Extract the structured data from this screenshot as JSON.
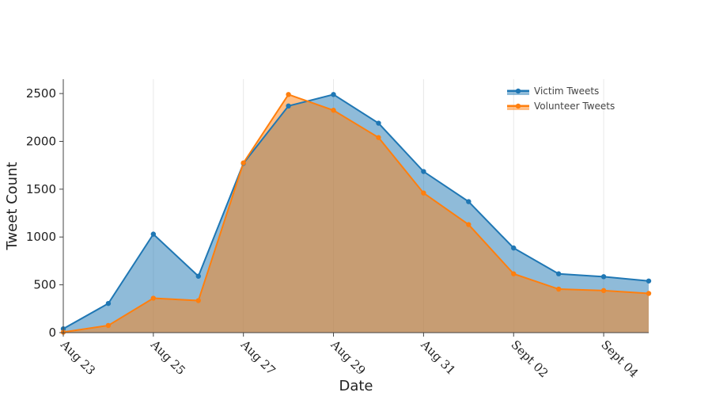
{
  "chart_data": {
    "type": "area",
    "title": "",
    "xlabel": "Date",
    "ylabel": "Tweet Count",
    "ylim": [
      0,
      2650
    ],
    "yticks": [
      0,
      500,
      1000,
      1500,
      2000,
      2500
    ],
    "x": [
      "2017-08-23",
      "2017-08-24",
      "2017-08-25",
      "2017-08-26",
      "2017-08-27",
      "2017-08-28",
      "2017-08-29",
      "2017-08-30",
      "2017-08-31",
      "2017-09-01",
      "2017-09-02",
      "2017-09-03",
      "2017-09-04",
      "2017-09-05"
    ],
    "xticks": [
      {
        "date": "2017-08-23",
        "label": "Aug 23"
      },
      {
        "date": "2017-08-25",
        "label": "Aug 25"
      },
      {
        "date": "2017-08-27",
        "label": "Aug 27"
      },
      {
        "date": "2017-08-29",
        "label": "Aug 29"
      },
      {
        "date": "2017-08-31",
        "label": "Aug 31"
      },
      {
        "date": "2017-09-02",
        "label": "Sept 02"
      },
      {
        "date": "2017-09-04",
        "label": "Sept 04"
      }
    ],
    "grid": "vertical",
    "legend_position": "top-right",
    "series": [
      {
        "name": "Victim Tweets",
        "color": "#1f77b4",
        "fill": "#1f77b4",
        "values": [
          40,
          305,
          1030,
          590,
          1770,
          2370,
          2490,
          2190,
          1685,
          1370,
          885,
          615,
          585,
          540
        ]
      },
      {
        "name": "Volunteer Tweets",
        "color": "#ff7f0e",
        "fill": "#ff7f0e",
        "values": [
          5,
          75,
          360,
          335,
          1775,
          2490,
          2325,
          2040,
          1460,
          1130,
          615,
          455,
          440,
          410
        ]
      }
    ]
  }
}
